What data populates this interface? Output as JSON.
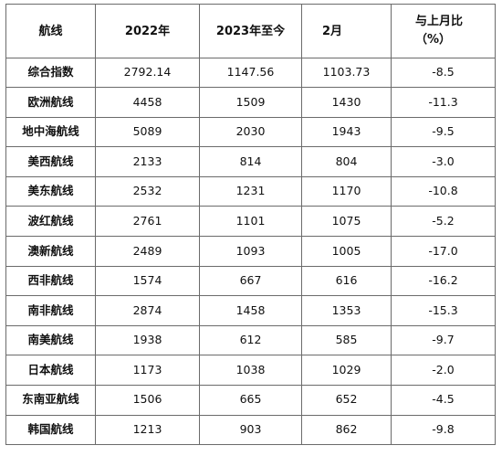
{
  "table": {
    "headers": {
      "route": "航线",
      "year_2022": "2022年",
      "year_2023_to_date": "2023年至今",
      "month": "2月",
      "change_line1": "与上月比",
      "change_line2": "（%）"
    },
    "rows": [
      {
        "route": "综合指数",
        "y2022": "2792.14",
        "y2023": "1147.56",
        "feb": "1103.73",
        "change": "-8.5"
      },
      {
        "route": "欧洲航线",
        "y2022": "4458",
        "y2023": "1509",
        "feb": "1430",
        "change": "-11.3"
      },
      {
        "route": "地中海航线",
        "y2022": "5089",
        "y2023": "2030",
        "feb": "1943",
        "change": "-9.5"
      },
      {
        "route": "美西航线",
        "y2022": "2133",
        "y2023": "814",
        "feb": "804",
        "change": "-3.0"
      },
      {
        "route": "美东航线",
        "y2022": "2532",
        "y2023": "1231",
        "feb": "1170",
        "change": "-10.8"
      },
      {
        "route": "波红航线",
        "y2022": "2761",
        "y2023": "1101",
        "feb": "1075",
        "change": "-5.2"
      },
      {
        "route": "澳新航线",
        "y2022": "2489",
        "y2023": "1093",
        "feb": "1005",
        "change": "-17.0"
      },
      {
        "route": "西非航线",
        "y2022": "1574",
        "y2023": "667",
        "feb": "616",
        "change": "-16.2"
      },
      {
        "route": "南非航线",
        "y2022": "2874",
        "y2023": "1458",
        "feb": "1353",
        "change": "-15.3"
      },
      {
        "route": "南美航线",
        "y2022": "1938",
        "y2023": "612",
        "feb": "585",
        "change": "-9.7"
      },
      {
        "route": "日本航线",
        "y2022": "1173",
        "y2023": "1038",
        "feb": "1029",
        "change": "-2.0"
      },
      {
        "route": "东南亚航线",
        "y2022": "1506",
        "y2023": "665",
        "feb": "652",
        "change": "-4.5"
      },
      {
        "route": "韩国航线",
        "y2022": "1213",
        "y2023": "903",
        "feb": "862",
        "change": "-9.8"
      }
    ]
  }
}
